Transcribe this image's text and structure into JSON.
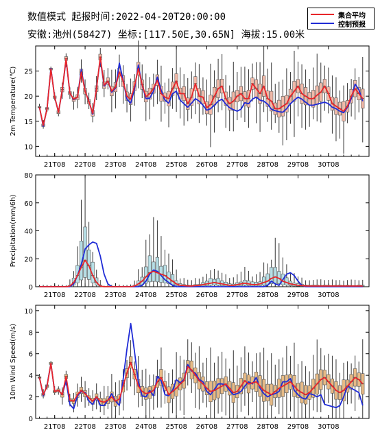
{
  "header": {
    "line1": "数值模式   起报时间:2022-04-20T20:00:00",
    "line2": "安徽:池州(58427) 坐标:[117.50E,30.65N] 海拔:15.00米"
  },
  "legend": [
    {
      "name": "集合平均",
      "color": "#e8262a"
    },
    {
      "name": "控制预报",
      "color": "#1f2bd6"
    }
  ],
  "colors": {
    "temp_box": "#f0b9a8",
    "precip_box": "#b7dfe6",
    "wind_box": "#e6ba86",
    "whisker": "#333333",
    "ensemble": "#e8262a",
    "control": "#1f2bd6"
  },
  "chart_data": [
    {
      "type": "box",
      "ylabel": "2m Temperature(℃)",
      "ylim": [
        8,
        30
      ],
      "yticks": [
        10,
        15,
        20,
        25
      ],
      "x_ticks": [
        "21T08",
        "22T08",
        "23T08",
        "24T08",
        "25T08",
        "26T08",
        "27T08",
        "28T08",
        "29T08",
        "30T08"
      ],
      "x_unit": "hours since start (first tick at 12)",
      "x": [
        0,
        3,
        6,
        9,
        12,
        15,
        18,
        21,
        24,
        27,
        30,
        33,
        36,
        39,
        42,
        45,
        48,
        51,
        54,
        57,
        60,
        63,
        66,
        69,
        72,
        75,
        78,
        81,
        84,
        87,
        90,
        93,
        96,
        99,
        102,
        105,
        108,
        111,
        114,
        117,
        120,
        123,
        126,
        129,
        132,
        135,
        138,
        141,
        144,
        147,
        150,
        153,
        156,
        159,
        162,
        165,
        168,
        171,
        174,
        177,
        180,
        183,
        186,
        189,
        192,
        195,
        198,
        201,
        204,
        207,
        210,
        213,
        216,
        219,
        222,
        225,
        228,
        231,
        234,
        237,
        240,
        243,
        246,
        249,
        252,
        255
      ],
      "series": [
        {
          "name": "集合平均",
          "values": [
            17.8,
            14.2,
            17.5,
            25.4,
            19.8,
            16.8,
            21.3,
            27.5,
            20.6,
            19.4,
            19.8,
            24.8,
            21,
            18.9,
            16.6,
            21.5,
            27.8,
            22.2,
            23,
            21,
            21.8,
            24.8,
            23,
            20,
            19.4,
            22,
            25.5,
            22.3,
            19.9,
            20.5,
            21.5,
            23.2,
            20.5,
            19.8,
            19.5,
            21.5,
            23,
            20.5,
            20.5,
            18.5,
            19.8,
            22.5,
            20,
            19.8,
            17.7,
            18.3,
            20,
            21.5,
            22,
            19.5,
            18.5,
            19,
            20,
            20.5,
            19.5,
            19.5,
            22.5,
            21.5,
            20.5,
            22,
            19.5,
            19,
            17.5,
            17.5,
            18,
            18.5,
            20,
            21,
            22,
            20.5,
            20,
            19.5,
            19.5,
            20.2,
            20.8,
            22,
            20.5,
            18.5,
            18,
            17.5,
            17,
            18,
            20,
            21.5,
            20.5,
            19.5
          ]
        },
        {
          "name": "控制预报",
          "values": [
            17.8,
            14,
            17.6,
            25.5,
            19.8,
            16.8,
            21.2,
            27.3,
            20.6,
            19.3,
            19.8,
            25.3,
            21,
            19,
            16.4,
            21.7,
            27.4,
            22,
            23,
            20.8,
            21.6,
            26.6,
            23.2,
            19.4,
            18.6,
            21.4,
            26.2,
            22.2,
            19.5,
            19.6,
            21,
            23.8,
            21.2,
            19.2,
            18.6,
            20.5,
            21,
            19.2,
            18.5,
            17.8,
            18.6,
            19.5,
            19,
            18.2,
            17.2,
            17.5,
            18.2,
            19,
            19.4,
            18.4,
            17.7,
            17.3,
            17,
            17.4,
            18.7,
            18.5,
            19.4,
            19.8,
            19.2,
            19,
            18.4,
            17.4,
            17.1,
            16.9,
            16.8,
            17.5,
            18.5,
            19.2,
            19.8,
            19.4,
            18.8,
            18.2,
            18.2,
            18.4,
            18.6,
            18.8,
            18.5,
            17.8,
            17.5,
            17,
            16.7,
            17.8,
            19.5,
            22.4,
            21.3,
            19
          ]
        }
      ]
    },
    {
      "type": "box",
      "ylabel": "Precipitation(mm/6h)",
      "ylim": [
        0,
        80
      ],
      "yticks": [
        0,
        20,
        40,
        60,
        80
      ],
      "x_ticks": [
        "21T08",
        "22T08",
        "23T08",
        "24T08",
        "25T08",
        "26T08",
        "27T08",
        "28T08",
        "29T08",
        "30T08"
      ],
      "x": [
        0,
        3,
        6,
        9,
        12,
        15,
        18,
        21,
        24,
        27,
        30,
        33,
        36,
        39,
        42,
        45,
        48,
        51,
        54,
        57,
        60,
        63,
        66,
        69,
        72,
        75,
        78,
        81,
        84,
        87,
        90,
        93,
        96,
        99,
        102,
        105,
        108,
        111,
        114,
        117,
        120,
        123,
        126,
        129,
        132,
        135,
        138,
        141,
        144,
        147,
        150,
        153,
        156,
        159,
        162,
        165,
        168,
        171,
        174,
        177,
        180,
        183,
        186,
        189,
        192,
        195,
        198,
        201,
        204,
        207,
        210,
        213,
        216,
        219,
        222,
        225,
        228,
        231,
        234,
        237,
        240,
        243,
        246,
        249,
        252,
        255
      ],
      "series": [
        {
          "name": "集合平均",
          "values": [
            0,
            0,
            0,
            0,
            0,
            0,
            0,
            0,
            0.5,
            3,
            8,
            14,
            19,
            15,
            8,
            3,
            0.5,
            0,
            0,
            0,
            0,
            0,
            0,
            0,
            0,
            0.5,
            2,
            4,
            7,
            10,
            11,
            10,
            9,
            8,
            6,
            4,
            2,
            1,
            0.8,
            0.6,
            0.5,
            0.8,
            1,
            1.5,
            2,
            2.5,
            3,
            2.5,
            2,
            1.5,
            1,
            1,
            1.5,
            2,
            2.5,
            2,
            1.5,
            1.5,
            2,
            3,
            4,
            6,
            7,
            6,
            4,
            3,
            2,
            1.5,
            1,
            0.8,
            0.6,
            0.5,
            0.5,
            0.5,
            0.5,
            0.5,
            0.5,
            0.5,
            0.5,
            0.5,
            0.5,
            0.5,
            0.5,
            0.5,
            0.5,
            0.5
          ]
        },
        {
          "name": "控制预报",
          "values": [
            0,
            0,
            0,
            0,
            0,
            0,
            0,
            0,
            0,
            2,
            8,
            16,
            27,
            30,
            32,
            31,
            22,
            9,
            2,
            0,
            0,
            0,
            0,
            0,
            0,
            0,
            0,
            1,
            4,
            9,
            12,
            11,
            8,
            5,
            3,
            1,
            0,
            0,
            0,
            0,
            0,
            0,
            0,
            0,
            0,
            0,
            0,
            0,
            0,
            0,
            0,
            0,
            0,
            0,
            0,
            0,
            0,
            0,
            0,
            0,
            1,
            4,
            2,
            1,
            5,
            9,
            10,
            8,
            4,
            1,
            0,
            0,
            0,
            0,
            0,
            0,
            0,
            0,
            0,
            0,
            0,
            0,
            0,
            0,
            0,
            0
          ]
        }
      ]
    },
    {
      "type": "box",
      "ylabel": "10m Wind Speed(m/s)",
      "ylim": [
        0,
        10.5
      ],
      "yticks": [
        0,
        2,
        4,
        6,
        8,
        10
      ],
      "x_ticks": [
        "21T08",
        "22T08",
        "23T08",
        "24T08",
        "25T08",
        "26T08",
        "27T08",
        "28T08",
        "29T08",
        "30T08"
      ],
      "x": [
        0,
        3,
        6,
        9,
        12,
        15,
        18,
        21,
        24,
        27,
        30,
        33,
        36,
        39,
        42,
        45,
        48,
        51,
        54,
        57,
        60,
        63,
        66,
        69,
        72,
        75,
        78,
        81,
        84,
        87,
        90,
        93,
        96,
        99,
        102,
        105,
        108,
        111,
        114,
        117,
        120,
        123,
        126,
        129,
        132,
        135,
        138,
        141,
        144,
        147,
        150,
        153,
        156,
        159,
        162,
        165,
        168,
        171,
        174,
        177,
        180,
        183,
        186,
        189,
        192,
        195,
        198,
        201,
        204,
        207,
        210,
        213,
        216,
        219,
        222,
        225,
        228,
        231,
        234,
        237,
        240,
        243,
        246,
        249,
        252,
        255
      ],
      "series": [
        {
          "name": "集合平均",
          "values": [
            3.8,
            2.2,
            3,
            5.1,
            2.5,
            2.6,
            2.2,
            3.9,
            1.7,
            1.6,
            2.2,
            2.6,
            2.3,
            1.9,
            1.6,
            2,
            1.6,
            1.5,
            1.7,
            2,
            1.6,
            1.8,
            3,
            4.2,
            5.2,
            4.1,
            3,
            2.5,
            2.3,
            2.4,
            2.6,
            3.4,
            3.8,
            3,
            2.2,
            2.5,
            2.8,
            3.2,
            3.5,
            4.8,
            4.5,
            4,
            3.5,
            3.2,
            2.8,
            2.5,
            2.6,
            2.8,
            3,
            3.2,
            2.8,
            2.4,
            2.5,
            3,
            3.5,
            3.2,
            3.3,
            3.4,
            3,
            2.6,
            2.4,
            2.2,
            2.5,
            2.8,
            3,
            3.2,
            3.4,
            3,
            2.6,
            2.4,
            2.2,
            2.4,
            2.8,
            3.2,
            3.6,
            3.8,
            3.4,
            3,
            2.6,
            2.4,
            2.6,
            3,
            3.4,
            3.8,
            3.6,
            3.2
          ]
        },
        {
          "name": "控制预报",
          "values": [
            3.8,
            2.1,
            3.1,
            5.1,
            2.5,
            2.6,
            2.2,
            3.5,
            1.3,
            0.9,
            2.1,
            2.5,
            2.4,
            1.6,
            1.3,
            2,
            1.2,
            1.2,
            1.7,
            2.3,
            1.6,
            1.2,
            3.6,
            6.4,
            8.8,
            6.2,
            3.4,
            2.1,
            2,
            2.6,
            2.1,
            3.9,
            3.5,
            2.2,
            2.1,
            2.6,
            3.6,
            3.3,
            3.6,
            5,
            4.4,
            4.2,
            3.6,
            3.4,
            2.5,
            2.2,
            2.7,
            3.2,
            3.2,
            3.1,
            2.6,
            2.2,
            2.3,
            2.5,
            3,
            3.4,
            3.2,
            3.8,
            2.8,
            2.3,
            2,
            2.2,
            2.3,
            2.5,
            3.4,
            3.4,
            3.7,
            2.6,
            2.2,
            1.9,
            1.8,
            2.3,
            2.2,
            2,
            2.2,
            1.3,
            1.2,
            1.1,
            1,
            1.2,
            2,
            3,
            2.8,
            2.6,
            2.4,
            1.2
          ]
        }
      ]
    }
  ]
}
